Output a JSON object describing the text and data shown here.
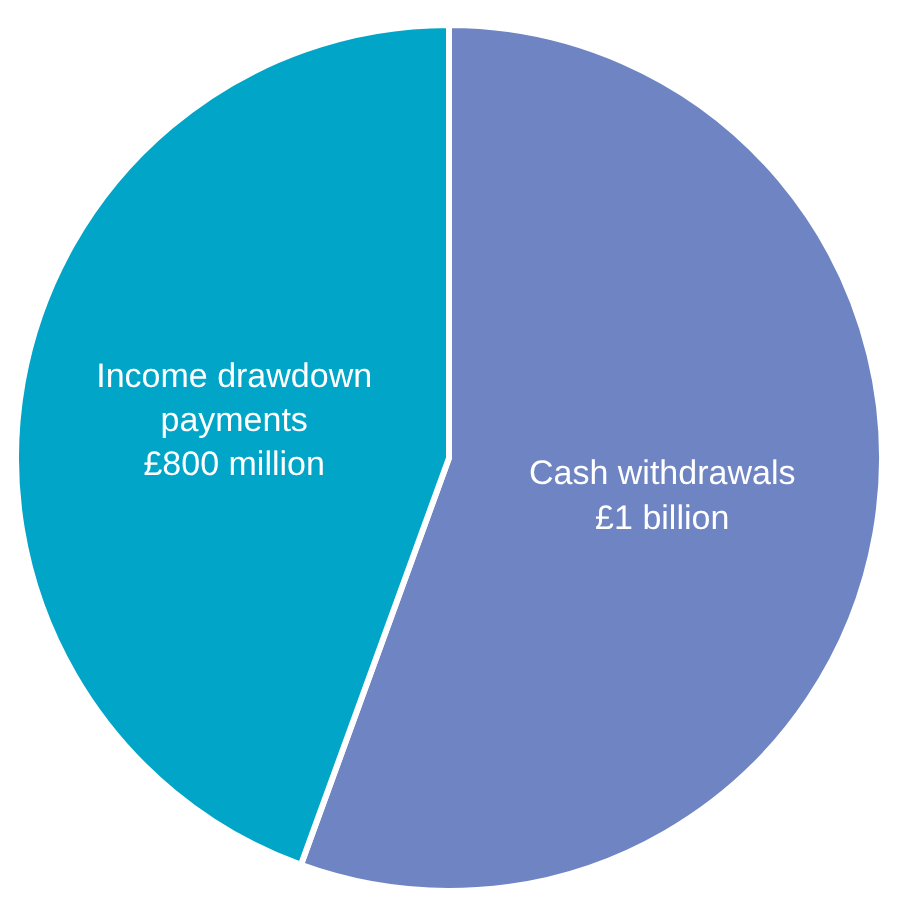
{
  "chart_data": {
    "type": "pie",
    "categories": [
      "Cash withdrawals",
      "Income drawdown payments"
    ],
    "values": [
      1000000000,
      800000000
    ],
    "value_labels": [
      "£1 billion",
      "£800 million"
    ],
    "colors": [
      "#6f84c2",
      "#00a5c8"
    ],
    "legend": false
  }
}
